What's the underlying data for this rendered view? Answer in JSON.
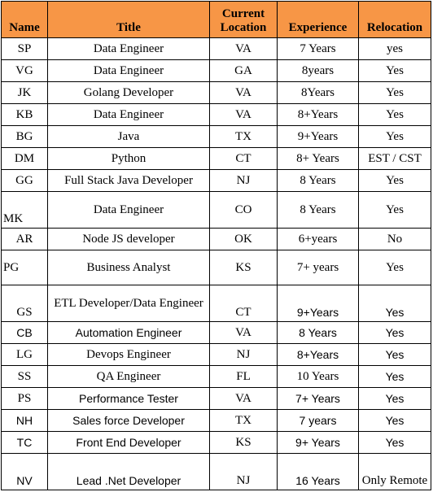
{
  "headers": [
    "Name",
    "Title",
    "Current Location",
    "Experience",
    "Relocation"
  ],
  "rows": [
    {
      "name": "SP",
      "title": "Data Engineer",
      "location": "VA",
      "experience": "7 Years",
      "relocation": "yes"
    },
    {
      "name": "VG",
      "title": "Data Engineer",
      "location": "GA",
      "experience": "8years",
      "relocation": "Yes"
    },
    {
      "name": "JK",
      "title": "Golang Developer",
      "location": "VA",
      "experience": "8Years",
      "relocation": "Yes"
    },
    {
      "name": "KB",
      "title": "Data Engineer",
      "location": "VA",
      "experience": "8+Years",
      "relocation": "Yes"
    },
    {
      "name": "BG",
      "title": "Java",
      "location": "TX",
      "experience": "9+Years",
      "relocation": "Yes"
    },
    {
      "name": "DM",
      "title": "Python",
      "location": "CT",
      "experience": "8+ Years",
      "relocation": "EST / CST"
    },
    {
      "name": "GG",
      "title": "Full Stack Java Developer",
      "location": "NJ",
      "experience": "8 Years",
      "relocation": "Yes"
    },
    {
      "name": "MK",
      "title": "Data Engineer",
      "location": "CO",
      "experience": "8 Years",
      "relocation": "Yes"
    },
    {
      "name": "AR",
      "title": "Node JS developer",
      "location": "OK",
      "experience": "6+years",
      "relocation": "No"
    },
    {
      "name": "PG",
      "title": "Business Analyst",
      "location": "KS",
      "experience": "7+ years",
      "relocation": "Yes"
    },
    {
      "name": "GS",
      "title": "ETL Developer/Data Engineer",
      "location": "CT",
      "experience": "9+Years",
      "relocation": "Yes"
    },
    {
      "name": "CB",
      "title": "Automation Engineer",
      "location": "VA",
      "experience": "8 Years",
      "relocation": "Yes"
    },
    {
      "name": "LG",
      "title": "Devops Engineer",
      "location": "NJ",
      "experience": "8+Years",
      "relocation": "Yes"
    },
    {
      "name": "SS",
      "title": "QA Engineer",
      "location": "FL",
      "experience": "10 Years",
      "relocation": "Yes"
    },
    {
      "name": "PS",
      "title": "Performance Tester",
      "location": "VA",
      "experience": "7+ Years",
      "relocation": "Yes"
    },
    {
      "name": "NH",
      "title": "Sales force Developer",
      "location": "TX",
      "experience": "7 years",
      "relocation": "Yes"
    },
    {
      "name": "TC",
      "title": "Front End Developer",
      "location": "KS",
      "experience": "9+ Years",
      "relocation": "Yes"
    },
    {
      "name": "NV",
      "title": "Lead .Net Developer",
      "location": "NJ",
      "experience": "16 Years",
      "relocation": "Only Remote"
    }
  ]
}
